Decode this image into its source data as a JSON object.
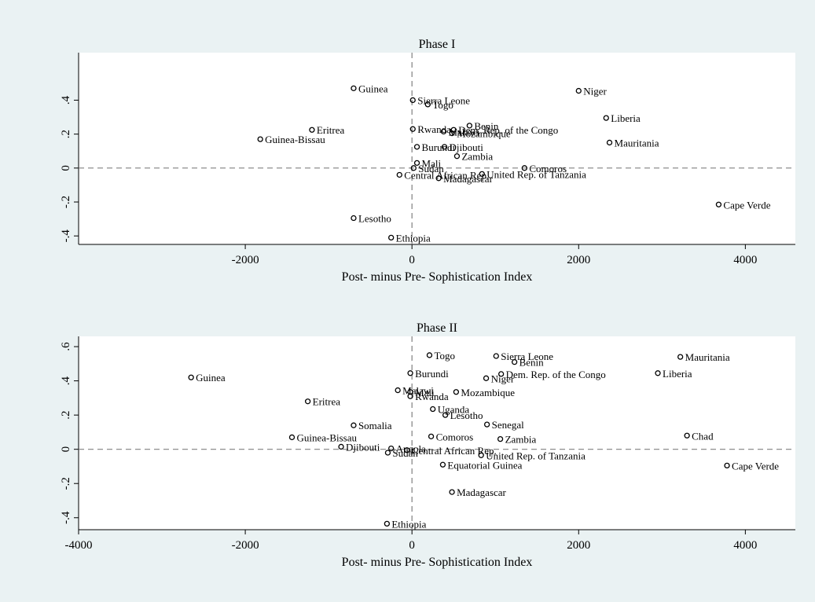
{
  "colors": {
    "background": "#eaf2f3",
    "plot_area": "#ffffff",
    "marker": "#000000",
    "reference_line": "#808080"
  },
  "chart_data": [
    {
      "type": "scatter",
      "title": "Phase I",
      "xlabel": "Post- minus Pre- Sophistication Index",
      "ylabel": "",
      "xlim": [
        -4000,
        4600
      ],
      "ylim": [
        -0.45,
        0.68
      ],
      "xticks": [
        -2000,
        0,
        2000,
        4000
      ],
      "xtick_labels": [
        "-2000",
        "0",
        "2000",
        "4000"
      ],
      "yticks": [
        -0.4,
        -0.2,
        0,
        0.2,
        0.4
      ],
      "ytick_labels": [
        "-.4",
        "-.2",
        "0",
        ".2",
        ".4"
      ],
      "reference_lines": {
        "x": 0,
        "y": 0,
        "style": "dashed"
      },
      "grid": false,
      "points": [
        {
          "label": "Guinea",
          "x": -700,
          "y": 0.47
        },
        {
          "label": "Eritrea",
          "x": -1200,
          "y": 0.225
        },
        {
          "label": "Guinea-Bissau",
          "x": -1820,
          "y": 0.17
        },
        {
          "label": "Lesotho",
          "x": -700,
          "y": -0.295
        },
        {
          "label": "Ethiopia",
          "x": -250,
          "y": -0.41
        },
        {
          "label": "Sierra Leone",
          "x": 10,
          "y": 0.4
        },
        {
          "label": "Togo",
          "x": 190,
          "y": 0.375
        },
        {
          "label": "Rwanda",
          "x": 10,
          "y": 0.23
        },
        {
          "label": "Benin",
          "x": 690,
          "y": 0.25
        },
        {
          "label": "Dem. Rep. of the Congo",
          "x": 500,
          "y": 0.225
        },
        {
          "label": "Mozambique",
          "x": 480,
          "y": 0.205
        },
        {
          "label": "Malawi",
          "x": 380,
          "y": 0.215
        },
        {
          "label": "Burundi",
          "x": 60,
          "y": 0.125
        },
        {
          "label": "Djibouti",
          "x": 390,
          "y": 0.125
        },
        {
          "label": "Zambia",
          "x": 540,
          "y": 0.07
        },
        {
          "label": "Mali",
          "x": 60,
          "y": 0.03
        },
        {
          "label": "Sudan",
          "x": 20,
          "y": 0.0
        },
        {
          "label": "Central African Rep.",
          "x": -150,
          "y": -0.04
        },
        {
          "label": "Madagascar",
          "x": 320,
          "y": -0.06
        },
        {
          "label": "Comoros",
          "x": 1350,
          "y": 0.0
        },
        {
          "label": "United Rep. of Tanzania",
          "x": 840,
          "y": -0.035
        },
        {
          "label": "Niger",
          "x": 2000,
          "y": 0.455
        },
        {
          "label": "Liberia",
          "x": 2330,
          "y": 0.295
        },
        {
          "label": "Mauritania",
          "x": 2370,
          "y": 0.15
        },
        {
          "label": "Cape Verde",
          "x": 3680,
          "y": -0.215
        }
      ]
    },
    {
      "type": "scatter",
      "title": "Phase II",
      "xlabel": "Post- minus Pre- Sophistication Index",
      "ylabel": "",
      "xlim": [
        -4000,
        4600
      ],
      "ylim": [
        -0.47,
        0.66
      ],
      "xticks": [
        -4000,
        -2000,
        0,
        2000,
        4000
      ],
      "xtick_labels": [
        "-4000",
        "-2000",
        "0",
        "2000",
        "4000"
      ],
      "yticks": [
        -0.4,
        -0.2,
        0,
        0.2,
        0.4,
        0.6
      ],
      "ytick_labels": [
        "-.4",
        "-.2",
        "0",
        ".2",
        ".4",
        ".6"
      ],
      "reference_lines": {
        "x": 0,
        "y": 0,
        "style": "dashed"
      },
      "grid": false,
      "points": [
        {
          "label": "Guinea",
          "x": -2650,
          "y": 0.42
        },
        {
          "label": "Eritrea",
          "x": -1250,
          "y": 0.28
        },
        {
          "label": "Somalia",
          "x": -700,
          "y": 0.14
        },
        {
          "label": "Guinea-Bissau",
          "x": -1440,
          "y": 0.07
        },
        {
          "label": "Djibouti",
          "x": -850,
          "y": 0.015
        },
        {
          "label": "Angola",
          "x": -250,
          "y": 0.005
        },
        {
          "label": "Sudan",
          "x": -290,
          "y": -0.02
        },
        {
          "label": "Central African Rep.",
          "x": -60,
          "y": -0.005
        },
        {
          "label": "Ethiopia",
          "x": -300,
          "y": -0.435
        },
        {
          "label": "Togo",
          "x": 210,
          "y": 0.55
        },
        {
          "label": "Burundi",
          "x": -20,
          "y": 0.445
        },
        {
          "label": "Malawi",
          "x": -170,
          "y": 0.345
        },
        {
          "label": "Mali",
          "x": -20,
          "y": 0.335
        },
        {
          "label": "Rwanda",
          "x": -20,
          "y": 0.31
        },
        {
          "label": "Uganda",
          "x": 250,
          "y": 0.235
        },
        {
          "label": "Lesotho",
          "x": 400,
          "y": 0.2
        },
        {
          "label": "Mozambique",
          "x": 530,
          "y": 0.335
        },
        {
          "label": "Senegal",
          "x": 900,
          "y": 0.145
        },
        {
          "label": "Comoros",
          "x": 230,
          "y": 0.075
        },
        {
          "label": "Zambia",
          "x": 1060,
          "y": 0.06
        },
        {
          "label": "Equatorial Guinea",
          "x": 370,
          "y": -0.09
        },
        {
          "label": "United Rep. of Tanzania",
          "x": 830,
          "y": -0.035
        },
        {
          "label": "Madagascar",
          "x": 480,
          "y": -0.25
        },
        {
          "label": "Sierra Leone",
          "x": 1010,
          "y": 0.545
        },
        {
          "label": "Benin",
          "x": 1230,
          "y": 0.51
        },
        {
          "label": "Dem. Rep. of the Congo",
          "x": 1070,
          "y": 0.44
        },
        {
          "label": "Niger",
          "x": 890,
          "y": 0.415
        },
        {
          "label": "Mauritania",
          "x": 3220,
          "y": 0.54
        },
        {
          "label": "Liberia",
          "x": 2950,
          "y": 0.445
        },
        {
          "label": "Chad",
          "x": 3300,
          "y": 0.08
        },
        {
          "label": "Cape Verde",
          "x": 3780,
          "y": -0.095
        }
      ]
    }
  ]
}
